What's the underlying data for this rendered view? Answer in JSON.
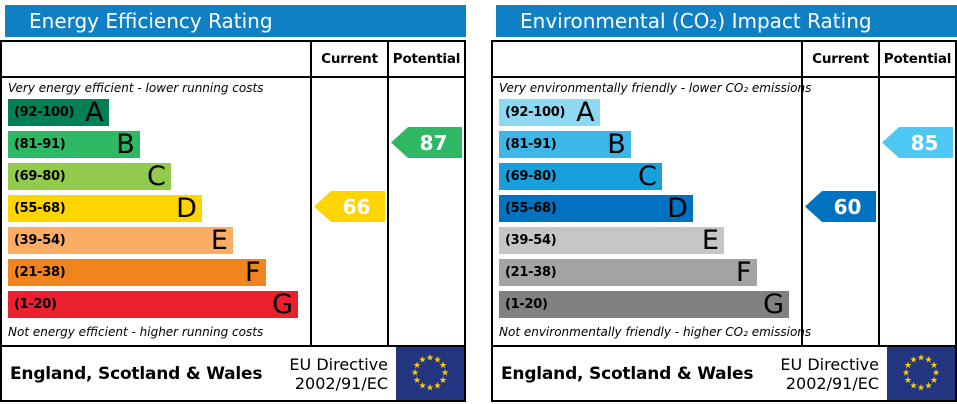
{
  "chart_data": [
    {
      "type": "bar",
      "chart_kind": "epc-rating-band-chart",
      "title": "Energy Efficiency Rating",
      "title_bg": "#1080c4",
      "columns": {
        "current": "Current",
        "potential": "Potential"
      },
      "top_note": "Very energy efficient - lower running costs",
      "bottom_note": "Not energy efficient - higher running costs",
      "value_range": [
        1,
        100
      ],
      "bands": [
        {
          "label": "A",
          "range": "(92-100)",
          "min": 92,
          "max": 100,
          "color": "#008054",
          "width_pct": 34
        },
        {
          "label": "B",
          "range": "(81-91)",
          "min": 81,
          "max": 91,
          "color": "#2eb863",
          "width_pct": 44.5
        },
        {
          "label": "C",
          "range": "(69-80)",
          "min": 69,
          "max": 80,
          "color": "#92ca4c",
          "width_pct": 55
        },
        {
          "label": "D",
          "range": "(55-68)",
          "min": 55,
          "max": 68,
          "color": "#ffd500",
          "width_pct": 65.5
        },
        {
          "label": "E",
          "range": "(39-54)",
          "min": 39,
          "max": 54,
          "color": "#fbad66",
          "width_pct": 76
        },
        {
          "label": "F",
          "range": "(21-38)",
          "min": 21,
          "max": 38,
          "color": "#f0841f",
          "width_pct": 87
        },
        {
          "label": "G",
          "range": "(1-20)",
          "min": 1,
          "max": 20,
          "color": "#ea202c",
          "width_pct": 98
        }
      ],
      "current": {
        "value": 66,
        "band": "D",
        "color": "#ffd500"
      },
      "potential": {
        "value": 87,
        "band": "B",
        "color": "#2eb863"
      },
      "footer": {
        "region": "England, Scotland & Wales",
        "directive_line1": "EU Directive",
        "directive_line2": "2002/91/EC",
        "flag_bg": "#24357f",
        "star_color": "#ffcc00"
      }
    },
    {
      "type": "bar",
      "chart_kind": "epc-rating-band-chart",
      "title": "Environmental (CO₂) Impact Rating",
      "title_bg": "#1080c4",
      "columns": {
        "current": "Current",
        "potential": "Potential"
      },
      "top_note": "Very environmentally friendly - lower CO₂ emissions",
      "bottom_note": "Not environmentally friendly - higher CO₂ emissions",
      "value_range": [
        1,
        100
      ],
      "bands": [
        {
          "label": "A",
          "range": "(92-100)",
          "min": 92,
          "max": 100,
          "color": "#8ed8f4",
          "width_pct": 34
        },
        {
          "label": "B",
          "range": "(81-91)",
          "min": 81,
          "max": 91,
          "color": "#3eb6e8",
          "width_pct": 44.5
        },
        {
          "label": "C",
          "range": "(69-80)",
          "min": 69,
          "max": 80,
          "color": "#17a0db",
          "width_pct": 55
        },
        {
          "label": "D",
          "range": "(55-68)",
          "min": 55,
          "max": 68,
          "color": "#0072bf",
          "width_pct": 65.5
        },
        {
          "label": "E",
          "range": "(39-54)",
          "min": 39,
          "max": 54,
          "color": "#c6c6c6",
          "width_pct": 76
        },
        {
          "label": "F",
          "range": "(21-38)",
          "min": 21,
          "max": 38,
          "color": "#a3a3a3",
          "width_pct": 87
        },
        {
          "label": "G",
          "range": "(1-20)",
          "min": 1,
          "max": 20,
          "color": "#7f8183",
          "width_pct": 98
        }
      ],
      "current": {
        "value": 60,
        "band": "D",
        "color": "#0072bf"
      },
      "potential": {
        "value": 85,
        "band": "B",
        "color": "#4ec8f3"
      },
      "footer": {
        "region": "England, Scotland & Wales",
        "directive_line1": "EU Directive",
        "directive_line2": "2002/91/EC",
        "flag_bg": "#24357f",
        "star_color": "#ffcc00"
      }
    }
  ]
}
